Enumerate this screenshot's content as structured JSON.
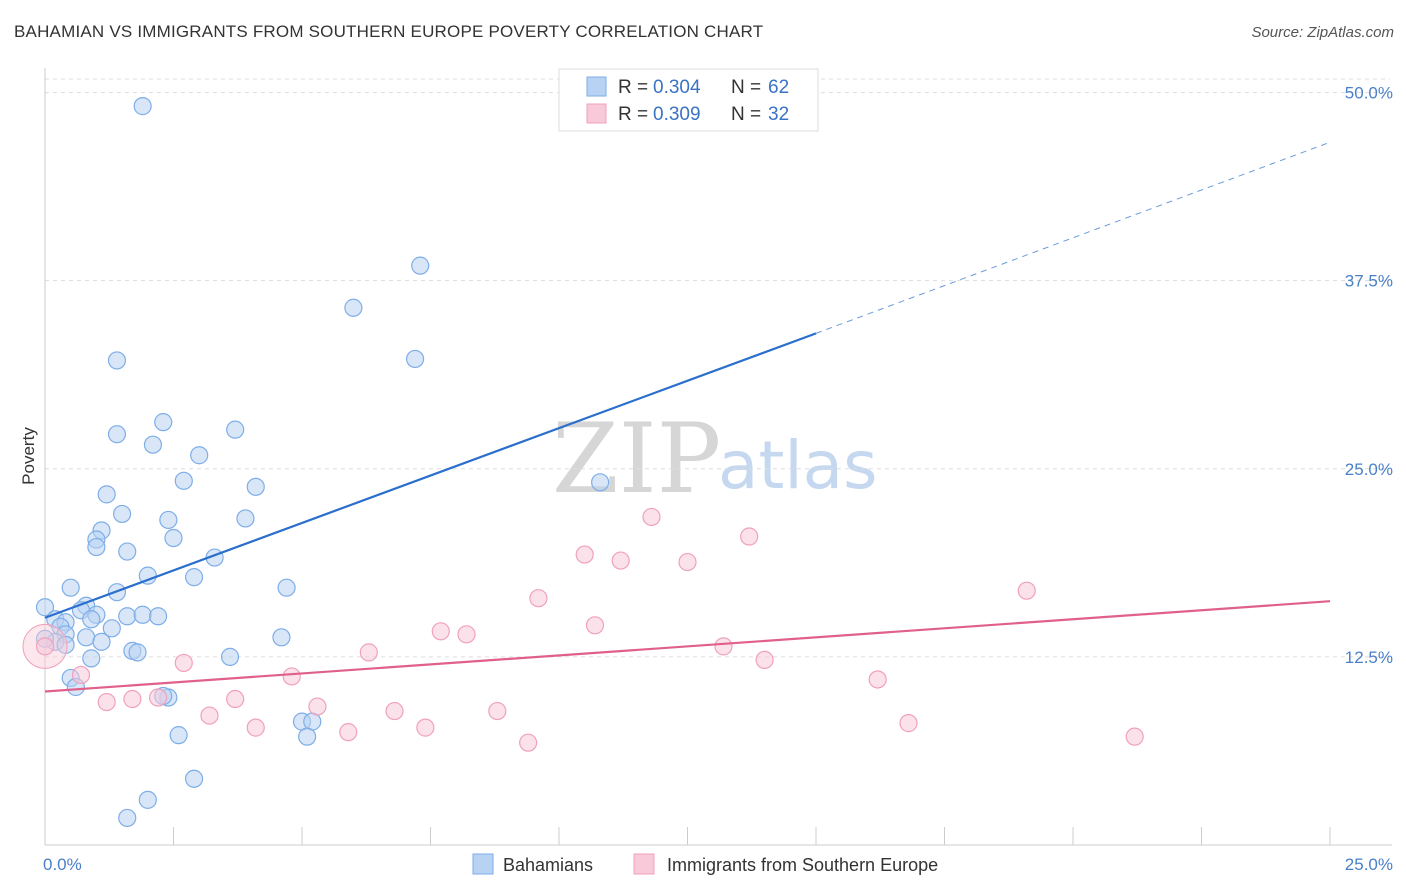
{
  "title": "BAHAMIAN VS IMMIGRANTS FROM SOUTHERN EUROPE POVERTY CORRELATION CHART",
  "source": "Source: ZipAtlas.com",
  "watermark": {
    "zip": "ZIP",
    "atlas": "atlas"
  },
  "chart_data": {
    "type": "scatter",
    "title": "BAHAMIAN VS IMMIGRANTS FROM SOUTHERN EUROPE POVERTY CORRELATION CHART",
    "xlabel": "",
    "ylabel": "Poverty",
    "xlim": [
      0,
      25
    ],
    "ylim": [
      0,
      51.5
    ],
    "x_tick_labels": [
      {
        "value": 0,
        "label": "0.0%"
      },
      {
        "value": 25,
        "label": "25.0%"
      }
    ],
    "y_ticks": [
      {
        "value": 12.5,
        "label": "12.5%"
      },
      {
        "value": 25,
        "label": "25.0%"
      },
      {
        "value": 37.5,
        "label": "37.5%"
      },
      {
        "value": 50,
        "label": "50.0%"
      }
    ],
    "legend": [
      {
        "r_label": "R = ",
        "r_value": "0.304",
        "n_label": "N = ",
        "n_value": "62"
      },
      {
        "r_label": "R = ",
        "r_value": "0.309",
        "n_label": "N = ",
        "n_value": "32"
      }
    ],
    "series": [
      {
        "name": "Bahamians",
        "color": "#7eaee8",
        "fill": "#b8d2f3",
        "line_color": "#2a6fcc",
        "trend": {
          "x0": 0,
          "y0": 15.1,
          "x1": 15,
          "y1": 34.0,
          "dash_x1": 25,
          "dash_y1": 46.7
        },
        "points": [
          [
            1.9,
            49.1
          ],
          [
            7.3,
            38.5
          ],
          [
            6.0,
            35.7
          ],
          [
            1.4,
            32.2
          ],
          [
            7.2,
            32.3
          ],
          [
            2.3,
            28.1
          ],
          [
            1.4,
            27.3
          ],
          [
            3.7,
            27.6
          ],
          [
            2.1,
            26.6
          ],
          [
            3.0,
            25.9
          ],
          [
            2.7,
            24.2
          ],
          [
            4.1,
            23.8
          ],
          [
            1.2,
            23.3
          ],
          [
            10.8,
            24.1
          ],
          [
            1.5,
            22.0
          ],
          [
            2.4,
            21.6
          ],
          [
            3.9,
            21.7
          ],
          [
            1.1,
            20.9
          ],
          [
            2.5,
            20.4
          ],
          [
            1.0,
            20.3
          ],
          [
            1.0,
            19.8
          ],
          [
            1.6,
            19.5
          ],
          [
            3.3,
            19.1
          ],
          [
            2.0,
            17.9
          ],
          [
            2.9,
            17.8
          ],
          [
            4.7,
            17.1
          ],
          [
            0.5,
            17.1
          ],
          [
            1.4,
            16.8
          ],
          [
            0.8,
            15.9
          ],
          [
            0.0,
            15.8
          ],
          [
            0.7,
            15.6
          ],
          [
            1.0,
            15.3
          ],
          [
            1.6,
            15.2
          ],
          [
            1.9,
            15.3
          ],
          [
            2.2,
            15.2
          ],
          [
            0.2,
            15.0
          ],
          [
            0.9,
            15.0
          ],
          [
            0.4,
            14.8
          ],
          [
            1.3,
            14.4
          ],
          [
            0.3,
            14.5
          ],
          [
            0.4,
            14.0
          ],
          [
            0.8,
            13.8
          ],
          [
            4.6,
            13.8
          ],
          [
            0.2,
            13.5
          ],
          [
            1.1,
            13.5
          ],
          [
            0.4,
            13.3
          ],
          [
            1.7,
            12.9
          ],
          [
            1.8,
            12.8
          ],
          [
            3.6,
            12.5
          ],
          [
            0.9,
            12.4
          ],
          [
            0.5,
            11.1
          ],
          [
            0.6,
            10.5
          ],
          [
            2.4,
            9.8
          ],
          [
            5.0,
            8.2
          ],
          [
            5.2,
            8.2
          ],
          [
            2.6,
            7.3
          ],
          [
            5.1,
            7.2
          ],
          [
            2.9,
            4.4
          ],
          [
            2.0,
            3.0
          ],
          [
            1.6,
            1.8
          ],
          [
            0.0,
            13.7
          ],
          [
            2.3,
            9.9
          ]
        ]
      },
      {
        "name": "Immigrants from Southern Europe",
        "color": "#f0a1bc",
        "fill": "#f8c9d8",
        "line_color": "#e0608a",
        "trend": {
          "x0": 0,
          "y0": 10.2,
          "x1": 25,
          "y1": 16.2
        },
        "points": [
          [
            0.0,
            13.2
          ],
          [
            0.7,
            11.3
          ],
          [
            1.2,
            9.5
          ],
          [
            1.7,
            9.7
          ],
          [
            2.2,
            9.8
          ],
          [
            2.7,
            12.1
          ],
          [
            3.2,
            8.6
          ],
          [
            3.7,
            9.7
          ],
          [
            4.1,
            7.8
          ],
          [
            4.8,
            11.2
          ],
          [
            5.3,
            9.2
          ],
          [
            5.9,
            7.5
          ],
          [
            6.3,
            12.8
          ],
          [
            6.8,
            8.9
          ],
          [
            7.4,
            7.8
          ],
          [
            7.7,
            14.2
          ],
          [
            8.2,
            14.0
          ],
          [
            8.8,
            8.9
          ],
          [
            9.4,
            6.8
          ],
          [
            9.6,
            16.4
          ],
          [
            10.5,
            19.3
          ],
          [
            10.7,
            14.6
          ],
          [
            11.2,
            18.9
          ],
          [
            11.8,
            21.8
          ],
          [
            12.5,
            18.8
          ],
          [
            13.2,
            13.2
          ],
          [
            13.7,
            20.5
          ],
          [
            14.0,
            12.3
          ],
          [
            16.2,
            11.0
          ],
          [
            16.8,
            8.1
          ],
          [
            19.1,
            16.9
          ],
          [
            21.2,
            7.2
          ]
        ]
      }
    ]
  }
}
